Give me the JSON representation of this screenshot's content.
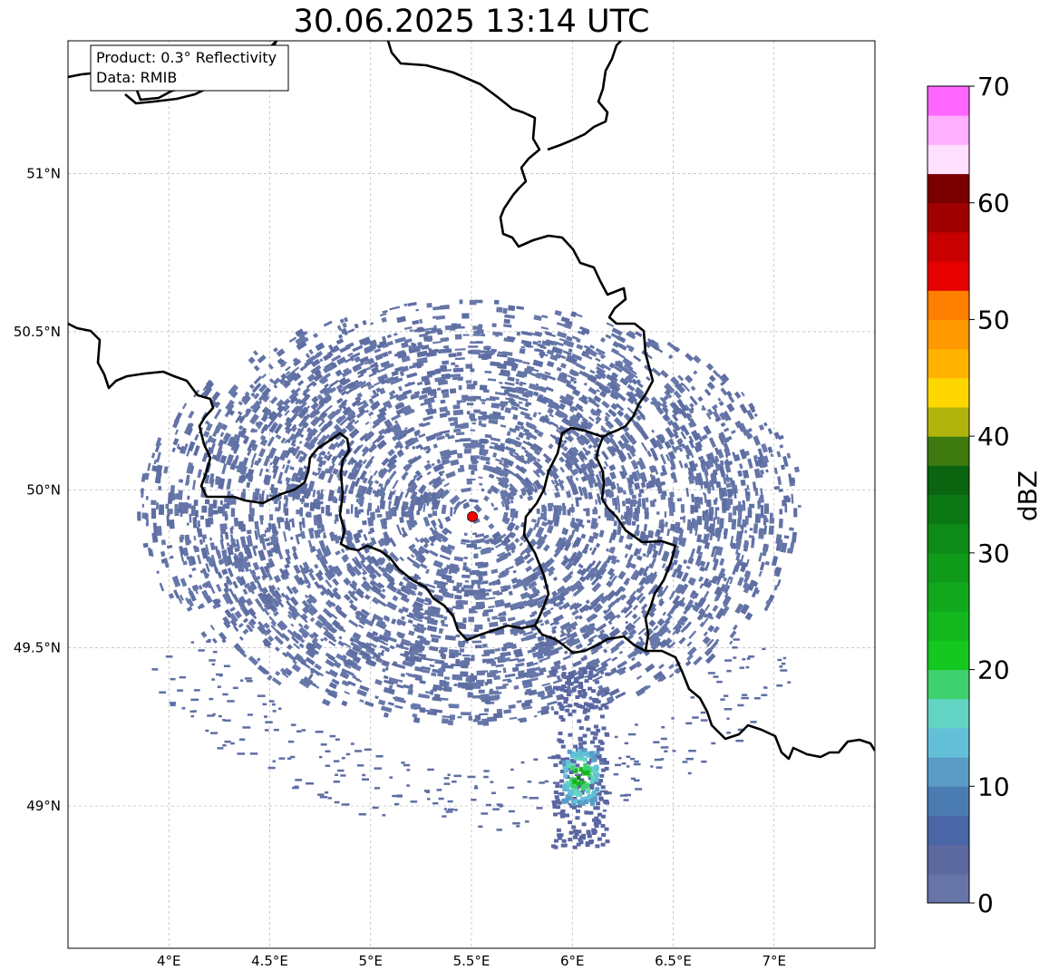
{
  "title": "30.06.2025 13:14 UTC",
  "info_box": {
    "product": "Product: 0.3° Reflectivity",
    "source": "Data: RMIB"
  },
  "map": {
    "lon_range": [
      3.5,
      7.5
    ],
    "lat_range": [
      48.55,
      51.42
    ],
    "lon_ticks": [
      {
        "value": 4.0,
        "label": "4°E"
      },
      {
        "value": 4.5,
        "label": "4.5°E"
      },
      {
        "value": 5.0,
        "label": "5°E"
      },
      {
        "value": 5.5,
        "label": "5.5°E"
      },
      {
        "value": 6.0,
        "label": "6°E"
      },
      {
        "value": 6.5,
        "label": "6.5°E"
      },
      {
        "value": 7.0,
        "label": "7°E"
      }
    ],
    "lat_ticks": [
      {
        "value": 49.0,
        "label": "49°N"
      },
      {
        "value": 49.5,
        "label": "49.5°N"
      },
      {
        "value": 50.0,
        "label": "50°N"
      },
      {
        "value": 50.5,
        "label": "50.5°N"
      },
      {
        "value": 51.0,
        "label": "51°N"
      }
    ],
    "radar_site": {
      "lon": 5.505,
      "lat": 49.915,
      "color": "#ff0000"
    },
    "echo_region": {
      "center_lon": 5.5,
      "center_lat": 49.93,
      "radius_lon": 1.65,
      "radius_lat": 0.67
    },
    "storm_cell": {
      "lon": 6.03,
      "lat": 49.1,
      "peak_dbz": 32
    }
  },
  "colorbar": {
    "label": "dBZ",
    "ticks": [
      {
        "value": 0,
        "label": "0"
      },
      {
        "value": 10,
        "label": "10"
      },
      {
        "value": 20,
        "label": "20"
      },
      {
        "value": 30,
        "label": "30"
      },
      {
        "value": 40,
        "label": "40"
      },
      {
        "value": 50,
        "label": "50"
      },
      {
        "value": 60,
        "label": "60"
      },
      {
        "value": 70,
        "label": "70"
      }
    ],
    "range": [
      0,
      70
    ],
    "step": 2.5,
    "colors": [
      "#6674a8",
      "#5b699f",
      "#4a66a6",
      "#4a7cb2",
      "#5a9cc6",
      "#63bfd8",
      "#62d4c3",
      "#3fd06f",
      "#14c81f",
      "#13b81e",
      "#12a81d",
      "#109a1a",
      "#0e8a18",
      "#0c7814",
      "#0a6410",
      "#3f7a10",
      "#b0b40a",
      "#ffd700",
      "#ffb300",
      "#ff9900",
      "#ff7f00",
      "#e60000",
      "#c80000",
      "#a00000",
      "#7a0000",
      "#ffe0ff",
      "#ffb0ff",
      "#ff66ff",
      "#e834e8"
    ]
  }
}
